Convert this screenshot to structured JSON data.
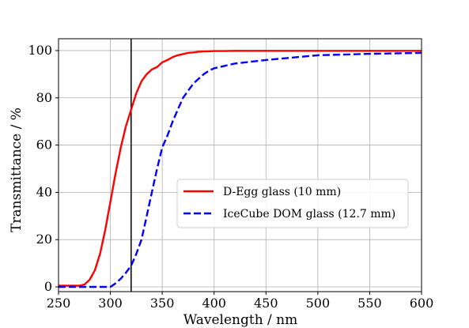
{
  "chart_data": {
    "type": "line",
    "title": "",
    "xlabel": "Wavelength / nm",
    "ylabel": "Transmittance / %",
    "xlim": [
      250,
      600
    ],
    "ylim": [
      -2,
      105
    ],
    "xticks": [
      250,
      300,
      350,
      400,
      450,
      500,
      550,
      600
    ],
    "yticks": [
      0,
      20,
      40,
      60,
      80,
      100
    ],
    "grid": true,
    "legend_position": "center-right",
    "vertical_line_x": 320,
    "vertical_line_color": "#000000",
    "series": [
      {
        "name": "D-Egg glass (10 mm)",
        "color": "#ff0000",
        "style": "solid",
        "x": [
          250,
          260,
          270,
          275,
          280,
          285,
          290,
          295,
          300,
          305,
          310,
          315,
          320,
          325,
          330,
          335,
          340,
          345,
          350,
          355,
          360,
          365,
          370,
          375,
          380,
          385,
          390,
          395,
          400,
          410,
          420,
          450,
          500,
          550,
          600
        ],
        "y": [
          0.5,
          0.5,
          0.5,
          1,
          3,
          7,
          14,
          24,
          36,
          48,
          59,
          68,
          75,
          82,
          87,
          90,
          92,
          93,
          95,
          96,
          97.2,
          98,
          98.5,
          99,
          99.2,
          99.5,
          99.6,
          99.7,
          99.8,
          99.8,
          99.9,
          99.9,
          99.9,
          99.9,
          99.9
        ]
      },
      {
        "name": "IceCube DOM glass (12.7 mm)",
        "color": "#0000ff",
        "style": "dashed",
        "x": [
          250,
          300,
          305,
          310,
          315,
          320,
          325,
          330,
          335,
          340,
          345,
          350,
          355,
          360,
          365,
          370,
          375,
          380,
          385,
          390,
          395,
          400,
          410,
          420,
          450,
          500,
          550,
          600
        ],
        "y": [
          0,
          0,
          1.5,
          3.5,
          6,
          9,
          14,
          20,
          30,
          40,
          50,
          59,
          64,
          70,
          75,
          80,
          83,
          86,
          88,
          90,
          91.5,
          92.5,
          93.5,
          94.5,
          96,
          98,
          98.6,
          99
        ]
      }
    ]
  }
}
